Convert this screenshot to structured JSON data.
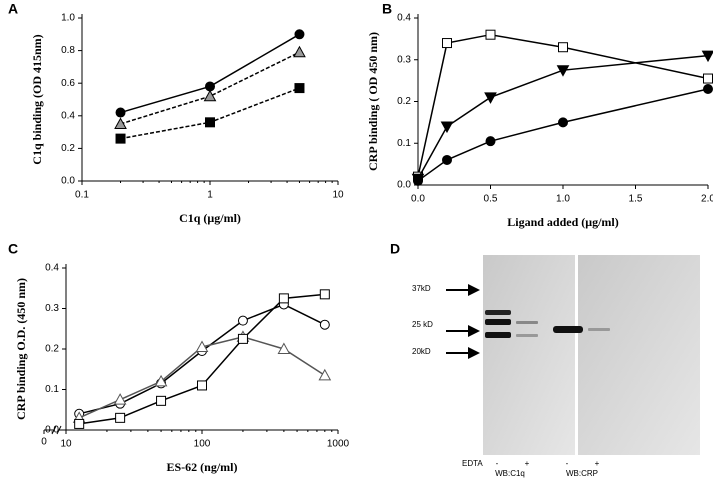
{
  "chart_data": [
    {
      "type": "line",
      "panel_label": "A",
      "x_label": "C1q (μg/ml)",
      "y_label": "C1q binding (OD 415nm)",
      "log_x": true,
      "x": [
        0.2,
        1,
        5
      ],
      "xlim": [
        0.1,
        10
      ],
      "xticks": [
        0.1,
        1,
        10
      ],
      "ylim": [
        0,
        1.0
      ],
      "yticks": [
        {
          "value": 0,
          "label": "0.0"
        },
        0.2,
        0.4,
        0.6,
        0.8,
        {
          "value": 1.0,
          "label": "1.0"
        }
      ],
      "series": [
        {
          "color": "#000000",
          "marker": "circle",
          "fill": "#000000",
          "dash": false,
          "values": [
            0.42,
            0.58,
            0.9
          ]
        },
        {
          "color": "#000000",
          "marker": "triangle",
          "fill": "#999999",
          "dash": true,
          "values": [
            0.35,
            0.52,
            0.79
          ]
        },
        {
          "color": "#000000",
          "marker": "square",
          "fill": "#000000",
          "dash": true,
          "values": [
            0.26,
            0.36,
            0.57
          ]
        }
      ]
    },
    {
      "type": "line",
      "panel_label": "B",
      "x_label": "Ligand added (μg/ml)",
      "y_label": "CRP binding ( OD 450 nm)",
      "log_x": false,
      "x": [
        0,
        0.2,
        0.5,
        1,
        2
      ],
      "xlim": [
        0,
        2.0
      ],
      "xticks": [
        {
          "value": 0,
          "label": "0.0"
        },
        0.5,
        {
          "value": 1.0,
          "label": "1.0"
        },
        1.5,
        {
          "value": 2.0,
          "label": "2.0"
        }
      ],
      "ylim": [
        0,
        0.4
      ],
      "yticks": [
        {
          "value": 0,
          "label": "0.0"
        },
        0.1,
        0.2,
        0.3,
        0.4
      ],
      "series": [
        {
          "color": "#000000",
          "marker": "square",
          "fill": "#ffffff",
          "dash": false,
          "values": [
            0.02,
            0.34,
            0.36,
            0.33,
            0.255
          ]
        },
        {
          "color": "#000000",
          "marker": "triangle-down",
          "fill": "#000000",
          "dash": false,
          "values": [
            0.015,
            0.14,
            0.21,
            0.275,
            0.31
          ]
        },
        {
          "color": "#000000",
          "marker": "circle",
          "fill": "#000000",
          "dash": false,
          "values": [
            0.01,
            0.06,
            0.105,
            0.15,
            0.23
          ]
        }
      ]
    },
    {
      "type": "line",
      "panel_label": "C",
      "x_label": "ES-62 (ng/ml)",
      "y_label": "CRP binding O.D. (450 nm)",
      "log_x": true,
      "x_break_label": "0",
      "x": [
        12.5,
        25,
        50,
        100,
        200,
        400,
        800
      ],
      "xlim": [
        10,
        1000
      ],
      "xticks": [
        10,
        100,
        1000
      ],
      "ylim": [
        0,
        0.4
      ],
      "yticks": [
        {
          "value": 0,
          "label": "0.0"
        },
        0.1,
        0.2,
        0.3,
        0.4
      ],
      "series": [
        {
          "color": "#000000",
          "marker": "circle",
          "fill": "#ffffff",
          "dash": false,
          "values": [
            0.04,
            0.065,
            0.115,
            0.195,
            0.27,
            0.31,
            0.26
          ]
        },
        {
          "color": "#555555",
          "marker": "triangle",
          "fill": "#ffffff",
          "dash": false,
          "values": [
            0.03,
            0.075,
            0.12,
            0.205,
            0.23,
            0.2,
            0.135
          ]
        },
        {
          "color": "#000000",
          "marker": "square",
          "fill": "#ffffff",
          "dash": false,
          "values": [
            0.015,
            0.03,
            0.072,
            0.11,
            0.225,
            0.325,
            0.335
          ]
        }
      ]
    }
  ],
  "blot": {
    "panel_label": "D",
    "markers": [
      "37kD",
      "25 kD",
      "20kD"
    ],
    "treatment": "EDTA",
    "lanes": [
      "-",
      "+",
      "-",
      "+"
    ],
    "blots": [
      "WB:C1q",
      "WB:CRP"
    ]
  }
}
